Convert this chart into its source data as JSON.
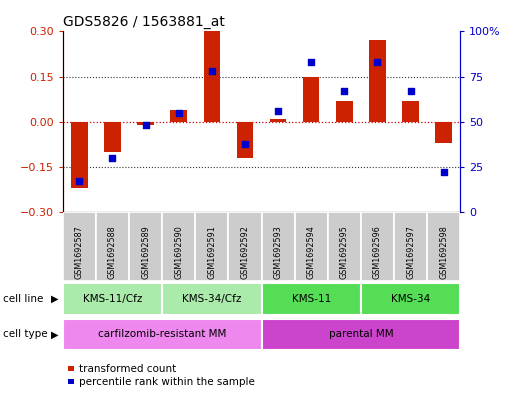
{
  "title": "GDS5826 / 1563881_at",
  "samples": [
    "GSM1692587",
    "GSM1692588",
    "GSM1692589",
    "GSM1692590",
    "GSM1692591",
    "GSM1692592",
    "GSM1692593",
    "GSM1692594",
    "GSM1692595",
    "GSM1692596",
    "GSM1692597",
    "GSM1692598"
  ],
  "transformed_count": [
    -0.22,
    -0.1,
    -0.01,
    0.04,
    0.3,
    -0.12,
    0.01,
    0.15,
    0.07,
    0.27,
    0.07,
    -0.07
  ],
  "percentile_rank": [
    17,
    30,
    48,
    55,
    78,
    38,
    56,
    83,
    67,
    83,
    67,
    22
  ],
  "bar_color": "#cc2200",
  "dot_color": "#0000cc",
  "ylim_left": [
    -0.3,
    0.3
  ],
  "ylim_right": [
    0,
    100
  ],
  "yticks_left": [
    -0.3,
    -0.15,
    0,
    0.15,
    0.3
  ],
  "yticks_right": [
    0,
    25,
    50,
    75,
    100
  ],
  "ytick_labels_right": [
    "0",
    "25",
    "50",
    "75",
    "100%"
  ],
  "hlines_dotted": [
    -0.15,
    0.15
  ],
  "hline_zero_color": "#cc0000",
  "hline_dotted_color": "#333333",
  "cell_line_groups": [
    {
      "label": "KMS-11/Cfz",
      "indices": [
        0,
        1,
        2
      ],
      "color": "#aaeaaa"
    },
    {
      "label": "KMS-34/Cfz",
      "indices": [
        3,
        4,
        5
      ],
      "color": "#aaeaaa"
    },
    {
      "label": "KMS-11",
      "indices": [
        6,
        7,
        8
      ],
      "color": "#55dd55"
    },
    {
      "label": "KMS-34",
      "indices": [
        9,
        10,
        11
      ],
      "color": "#55dd55"
    }
  ],
  "cell_type_groups": [
    {
      "label": "carfilzomib-resistant MM",
      "indices": [
        0,
        1,
        2,
        3,
        4,
        5
      ],
      "color": "#ee88ee"
    },
    {
      "label": "parental MM",
      "indices": [
        6,
        7,
        8,
        9,
        10,
        11
      ],
      "color": "#cc44cc"
    }
  ],
  "legend_bar_label": "transformed count",
  "legend_dot_label": "percentile rank within the sample",
  "cell_line_label": "cell line",
  "cell_type_label": "cell type",
  "sample_box_color": "#cccccc",
  "bg_color": "#ffffff",
  "left_axis_color": "#cc2200",
  "right_axis_color": "#0000cc"
}
